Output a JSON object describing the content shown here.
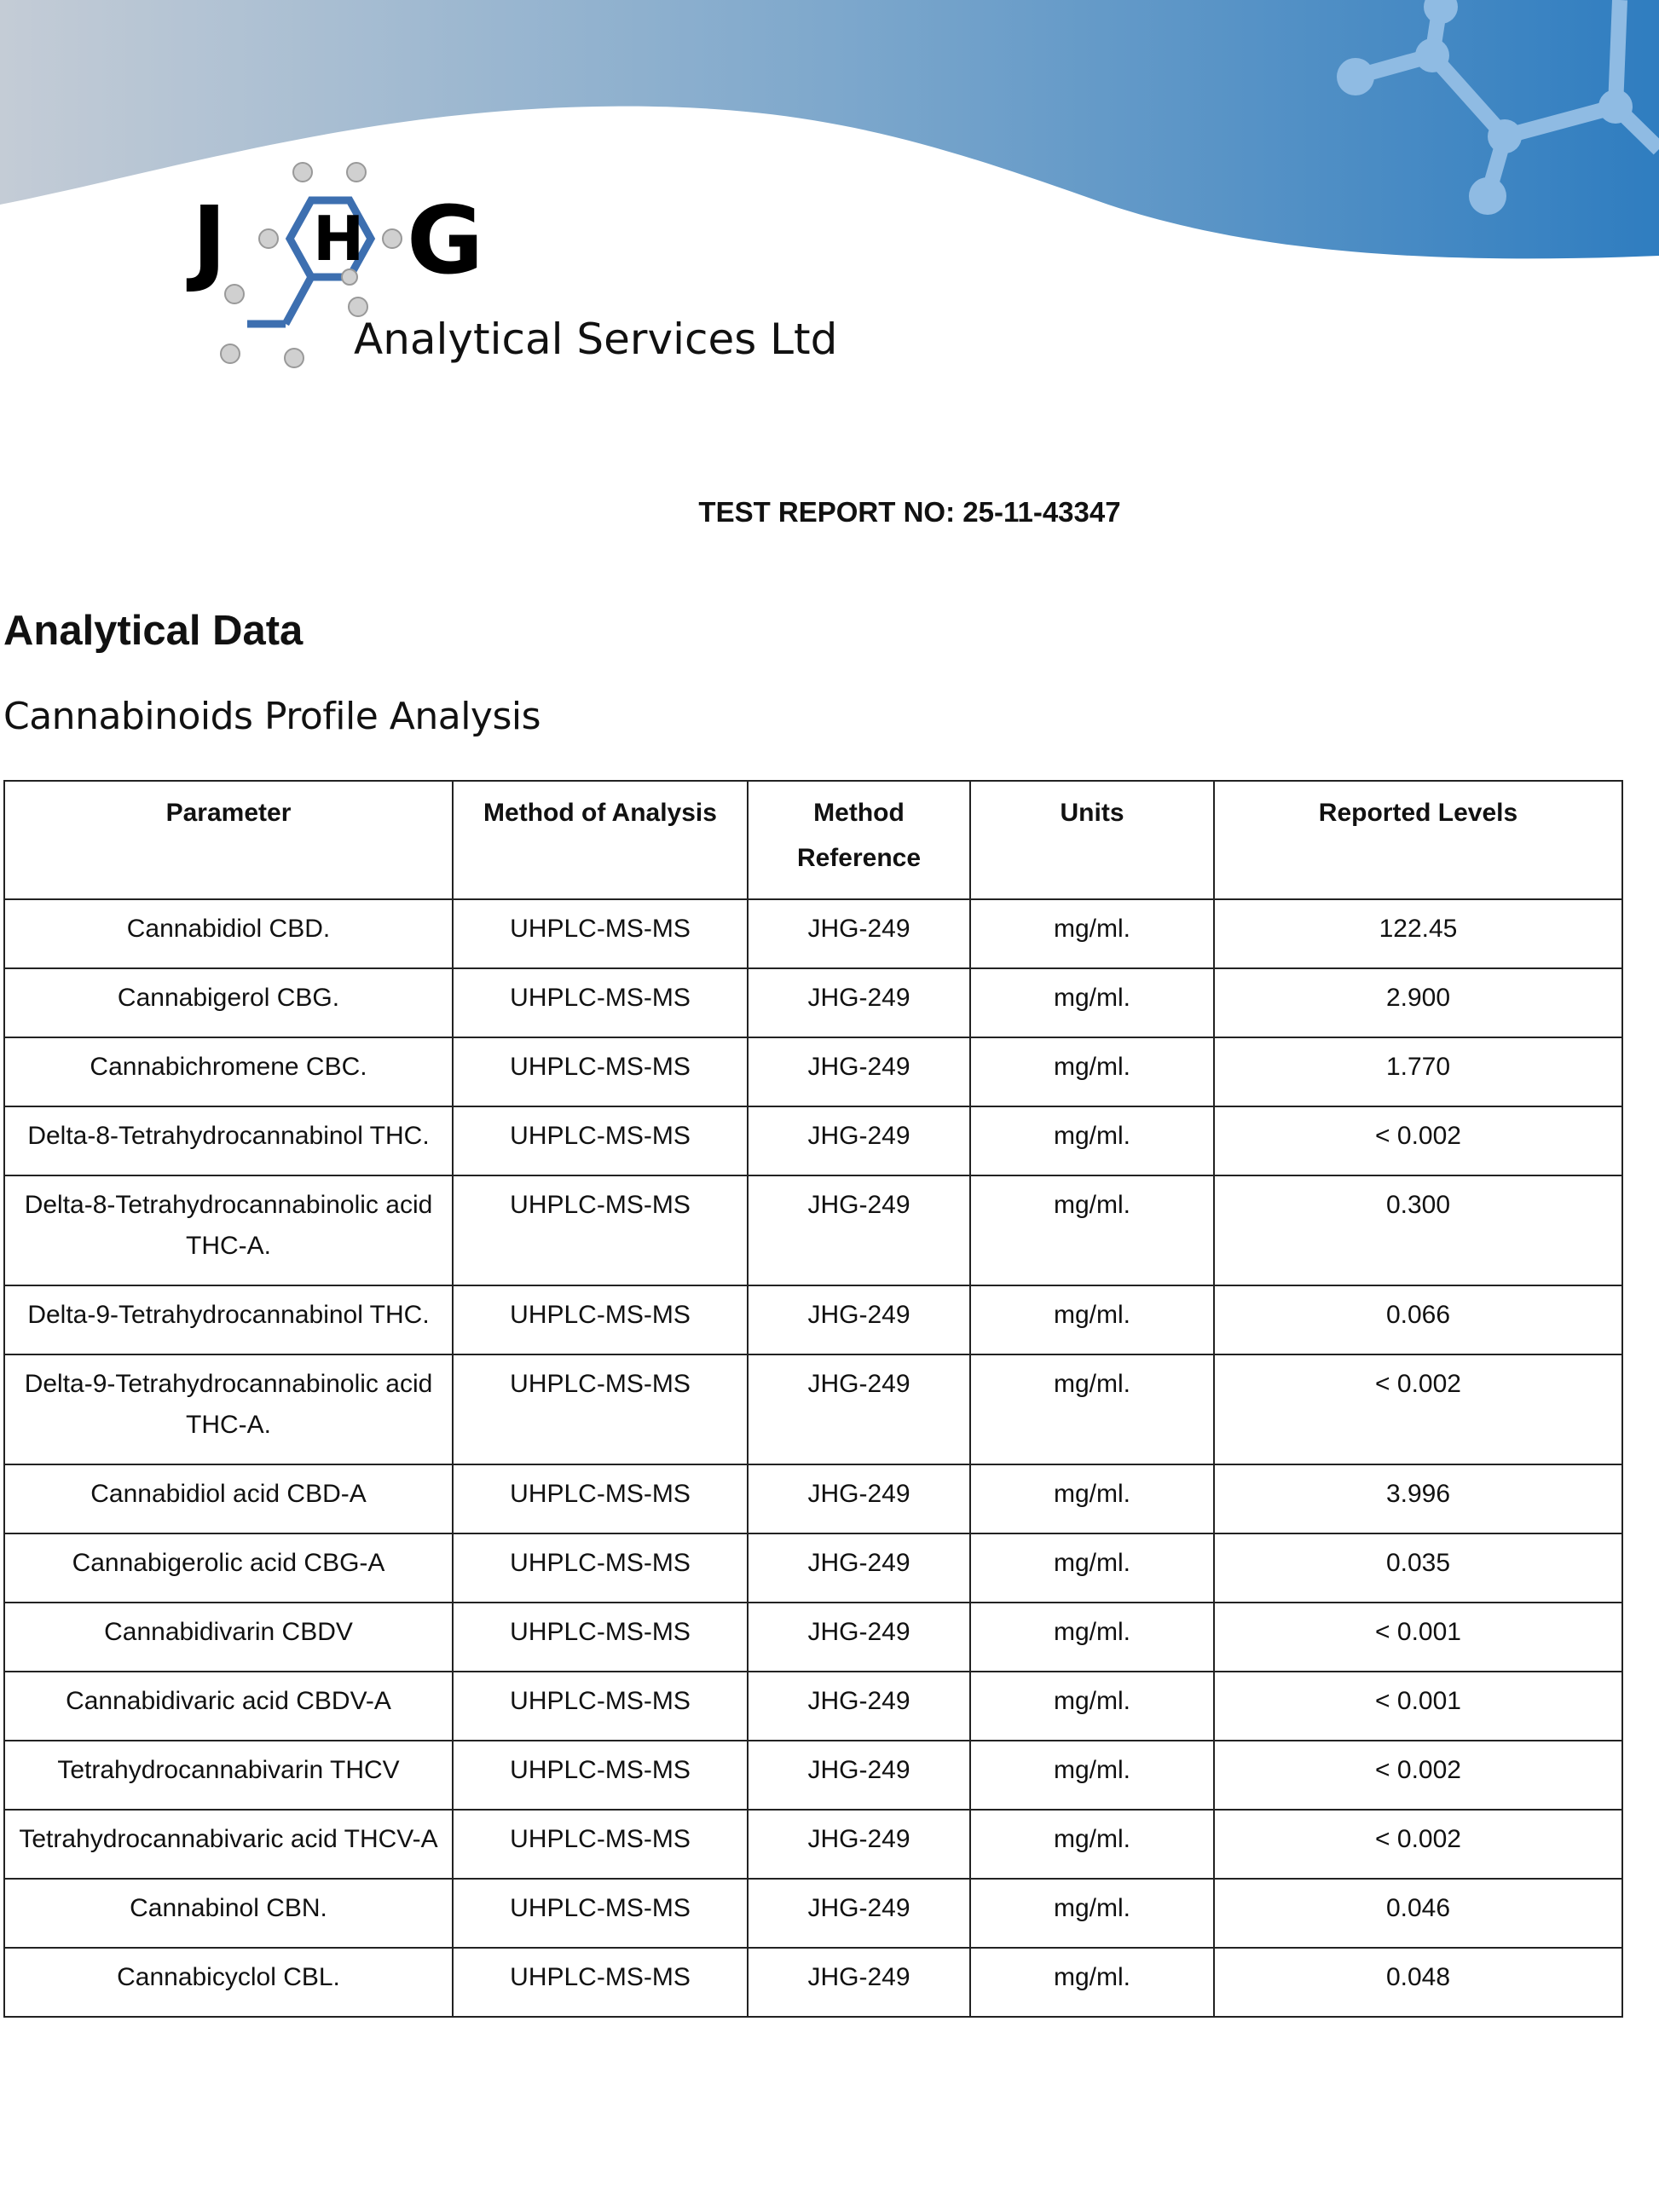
{
  "logo": {
    "letters": "JHG",
    "company": "Analytical Services Ltd"
  },
  "colors": {
    "banner_start": "#c4ccd6",
    "banner_end": "#2f7dc0",
    "logo_blue": "#3d6fb0"
  },
  "report": {
    "number_label": "TEST REPORT NO: 25-11-43347"
  },
  "section": {
    "title": "Analytical Data",
    "subtitle": "Cannabinoids Profile Analysis"
  },
  "table": {
    "headers": [
      "Parameter",
      "Method of Analysis",
      "Method Reference",
      "Units",
      "Reported Levels"
    ],
    "rows": [
      [
        "Cannabidiol CBD.",
        "UHPLC-MS-MS",
        "JHG-249",
        "mg/ml.",
        "122.45"
      ],
      [
        "Cannabigerol CBG.",
        "UHPLC-MS-MS",
        "JHG-249",
        "mg/ml.",
        "2.900"
      ],
      [
        "Cannabichromene CBC.",
        "UHPLC-MS-MS",
        "JHG-249",
        "mg/ml.",
        "1.770"
      ],
      [
        "Delta-8-Tetrahydrocannabinol THC.",
        "UHPLC-MS-MS",
        "JHG-249",
        "mg/ml.",
        "< 0.002"
      ],
      [
        "Delta-8-Tetrahydrocannabinolic acid THC-A.",
        "UHPLC-MS-MS",
        "JHG-249",
        "mg/ml.",
        "0.300"
      ],
      [
        "Delta-9-Tetrahydrocannabinol THC.",
        "UHPLC-MS-MS",
        "JHG-249",
        "mg/ml.",
        "0.066"
      ],
      [
        "Delta-9-Tetrahydrocannabinolic acid THC-A.",
        "UHPLC-MS-MS",
        "JHG-249",
        "mg/ml.",
        "< 0.002"
      ],
      [
        "Cannabidiol acid CBD-A",
        "UHPLC-MS-MS",
        "JHG-249",
        "mg/ml.",
        "3.996"
      ],
      [
        "Cannabigerolic acid CBG-A",
        "UHPLC-MS-MS",
        "JHG-249",
        "mg/ml.",
        "0.035"
      ],
      [
        "Cannabidivarin CBDV",
        "UHPLC-MS-MS",
        "JHG-249",
        "mg/ml.",
        "< 0.001"
      ],
      [
        "Cannabidivaric acid CBDV-A",
        "UHPLC-MS-MS",
        "JHG-249",
        "mg/ml.",
        "< 0.001"
      ],
      [
        "Tetrahydrocannabivarin THCV",
        "UHPLC-MS-MS",
        "JHG-249",
        "mg/ml.",
        "< 0.002"
      ],
      [
        "Tetrahydrocannabivaric acid THCV-A",
        "UHPLC-MS-MS",
        "JHG-249",
        "mg/ml.",
        "< 0.002"
      ],
      [
        "Cannabinol CBN.",
        "UHPLC-MS-MS",
        "JHG-249",
        "mg/ml.",
        "0.046"
      ],
      [
        "Cannabicyclol CBL.",
        "UHPLC-MS-MS",
        "JHG-249",
        "mg/ml.",
        "0.048"
      ]
    ]
  }
}
